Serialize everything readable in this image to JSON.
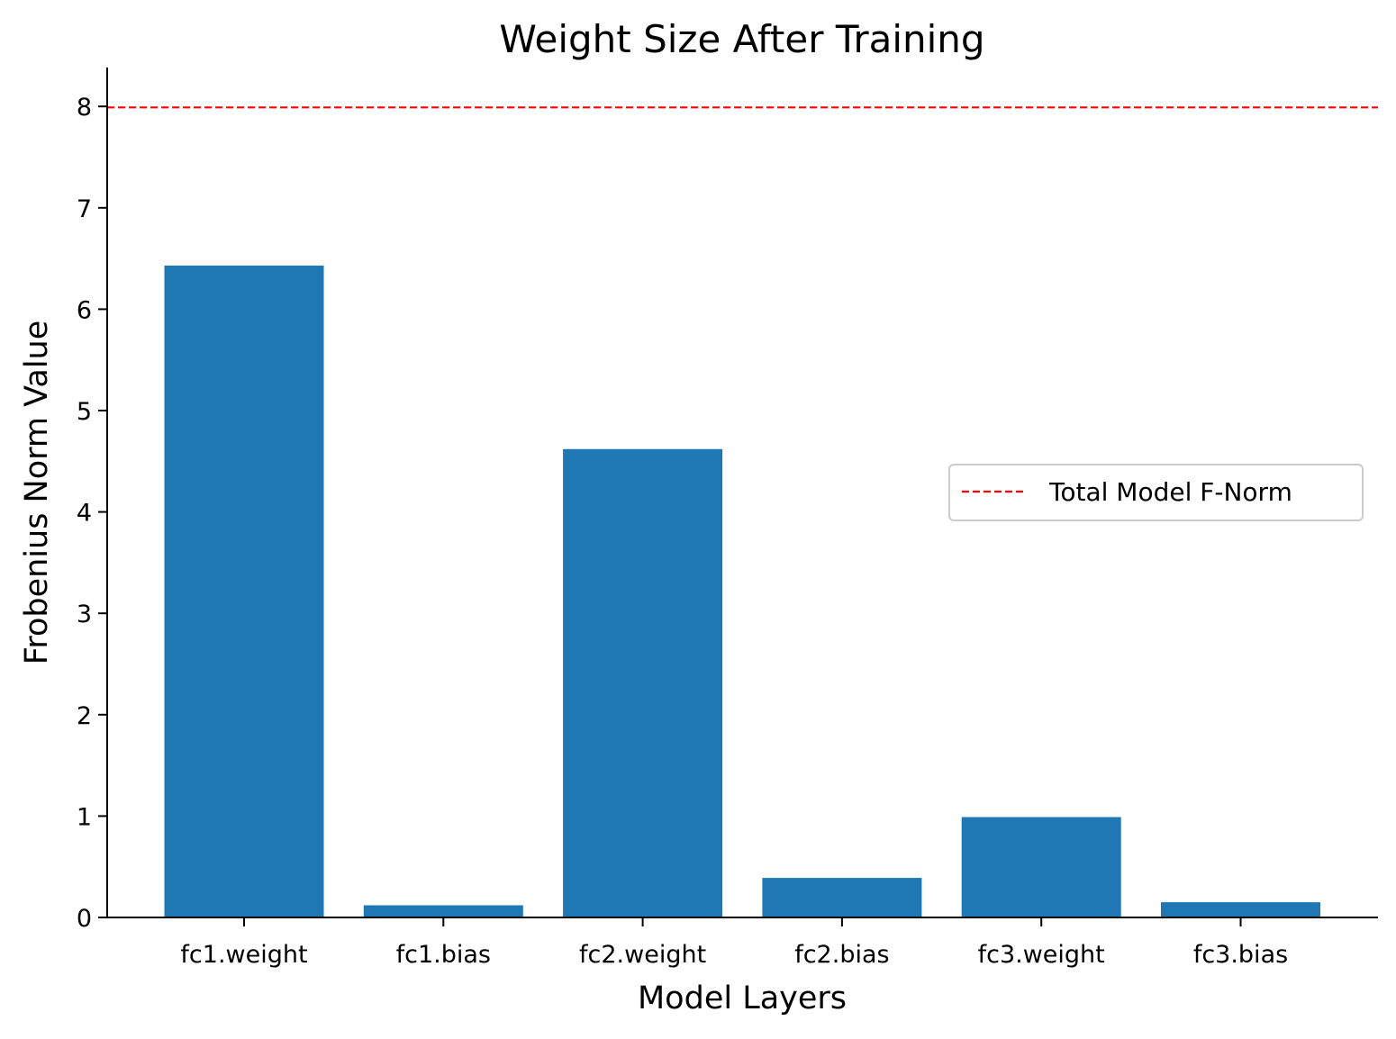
{
  "chart_data": {
    "type": "bar",
    "title": "Weight Size After Training",
    "xlabel": "Model Layers",
    "ylabel": "Frobenius Norm Value",
    "categories": [
      "fc1.weight",
      "fc1.bias",
      "fc2.weight",
      "fc2.bias",
      "fc3.weight",
      "fc3.bias"
    ],
    "values": [
      6.43,
      0.12,
      4.62,
      0.39,
      0.99,
      0.15
    ],
    "ylim": [
      0,
      8.4
    ],
    "yticks": [
      "0",
      "1",
      "2",
      "3",
      "4",
      "5",
      "6",
      "7",
      "8"
    ],
    "reference_line": {
      "value": 7.99,
      "label": "Total Model F-Norm",
      "color": "#ff0000",
      "style": "dashed"
    },
    "bar_color": "#1f77b4",
    "legend": {
      "placement": "center-right"
    },
    "grid": false
  }
}
